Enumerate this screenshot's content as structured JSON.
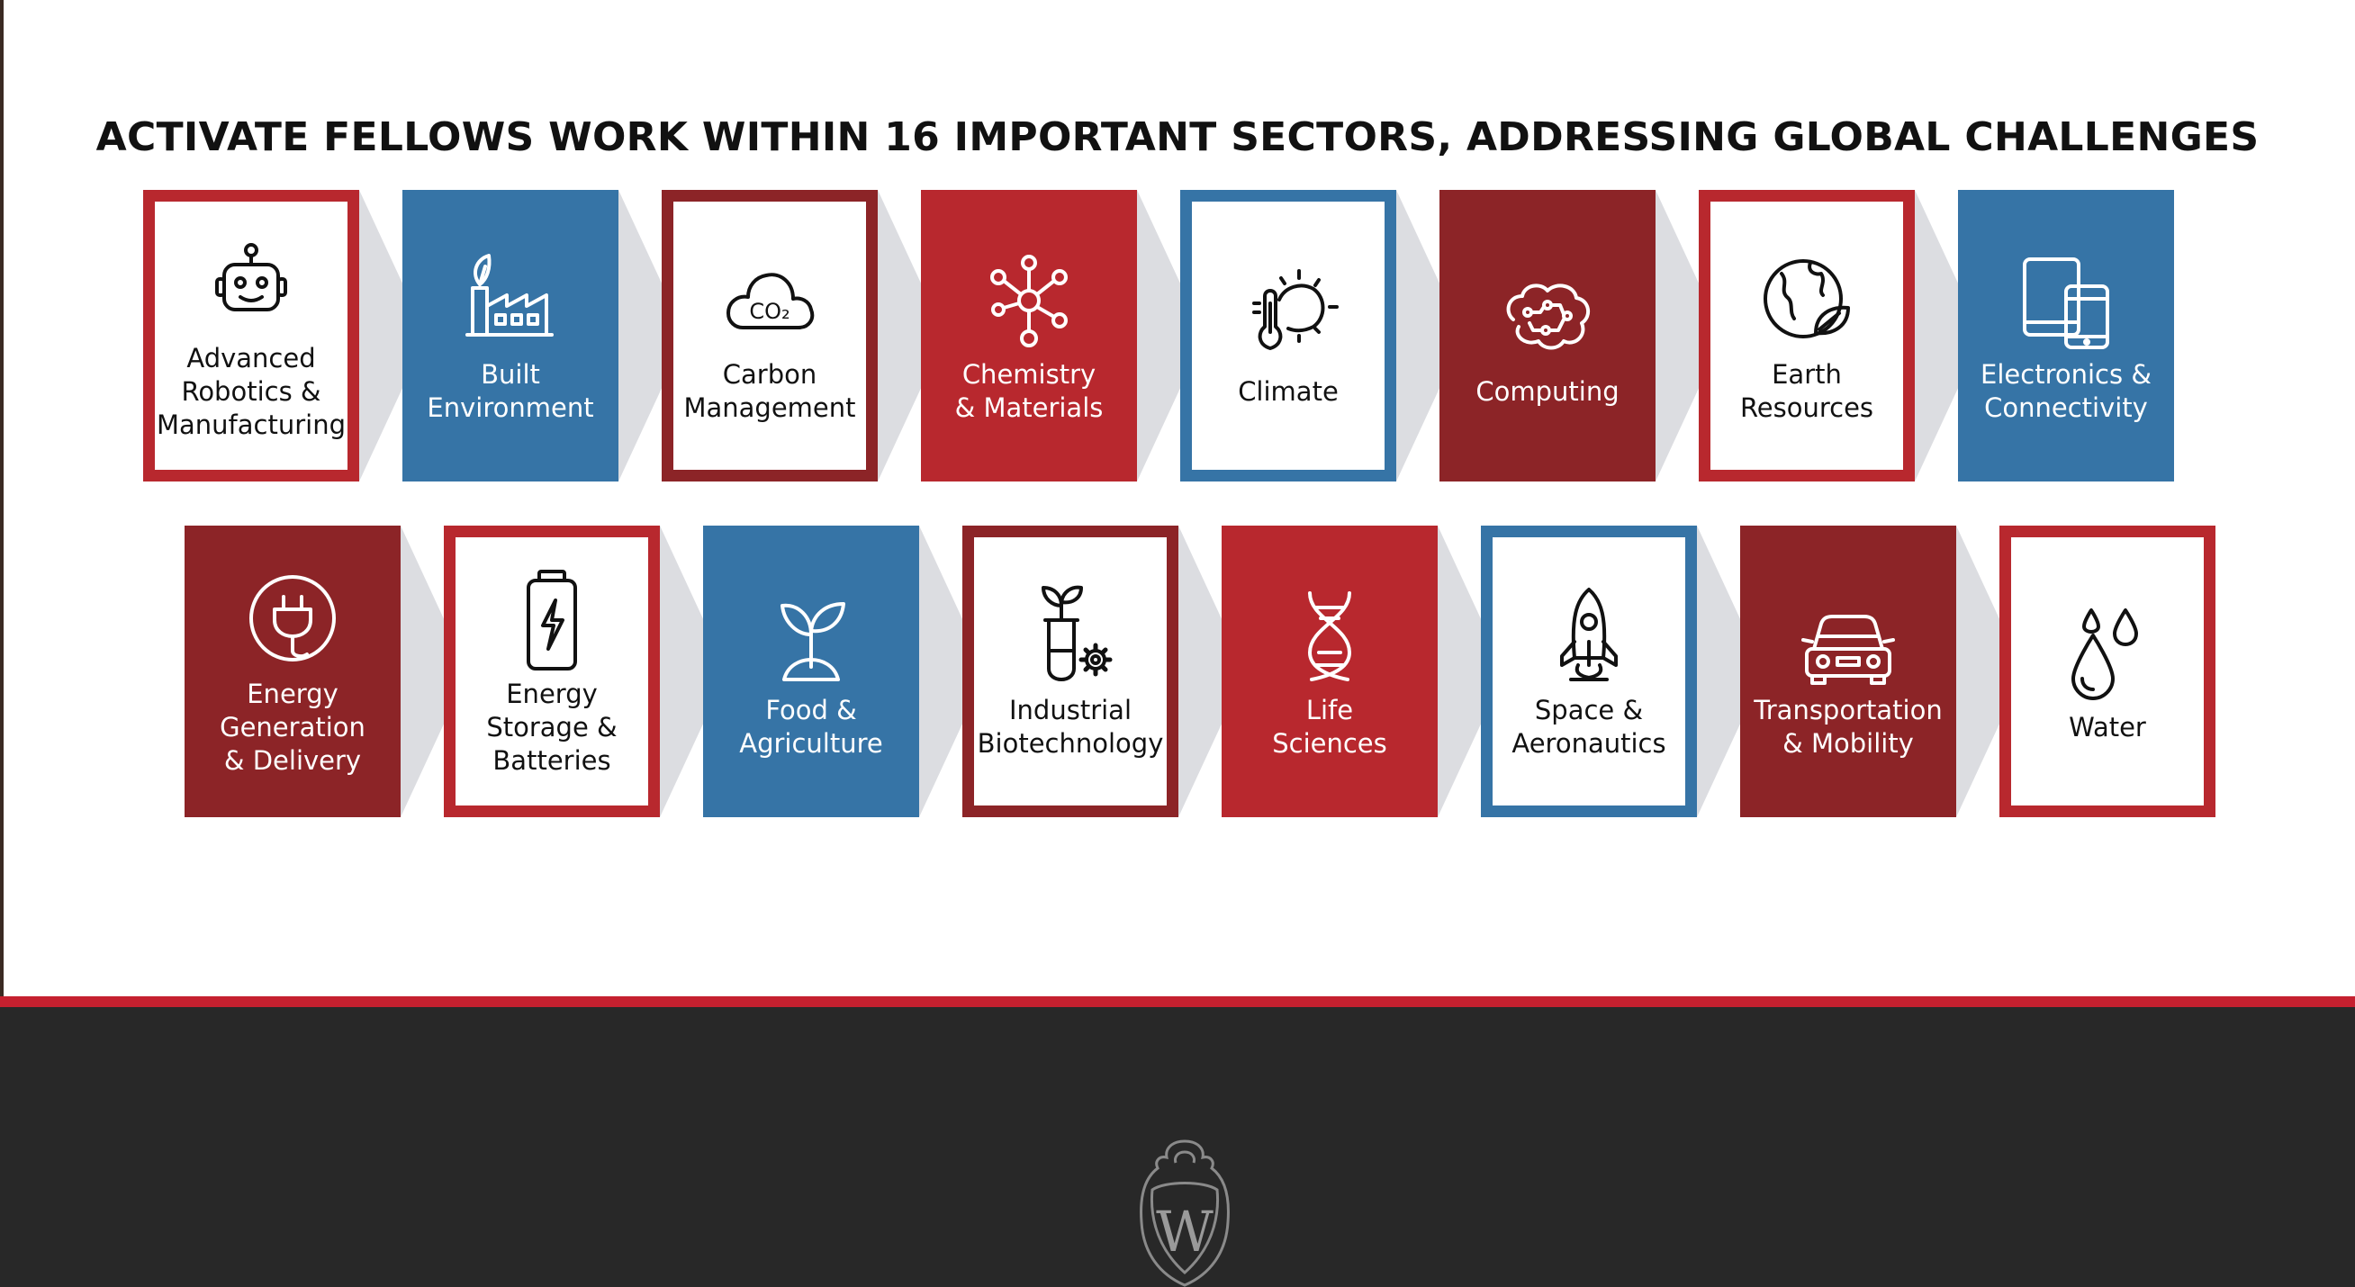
{
  "heading": "ACTIVATE FELLOWS WORK WITHIN 16 IMPORTANT SECTORS, ADDRESSING GLOBAL CHALLENGES",
  "colors": {
    "red": "#b8282e",
    "dark_red": "#8c2427",
    "blue": "#3674a6",
    "shadow": "#dcdde1",
    "footer_bg": "#282828",
    "footer_stripe": "#c5202f"
  },
  "rows": [
    {
      "tiles": [
        {
          "name": "advanced-robotics",
          "label": "Advanced\nRobotics &\nManufacturing",
          "style": "outline",
          "color": "red",
          "icon": "robot-icon"
        },
        {
          "name": "built-environment",
          "label": "Built\nEnvironment",
          "style": "solid",
          "color": "blue",
          "icon": "factory-icon"
        },
        {
          "name": "carbon-management",
          "label": "Carbon\nManagement",
          "style": "outline",
          "color": "dark_red",
          "icon": "co2-cloud-icon"
        },
        {
          "name": "chemistry-materials",
          "label": "Chemistry\n& Materials",
          "style": "solid",
          "color": "red",
          "icon": "molecule-icon"
        },
        {
          "name": "climate",
          "label": "Climate",
          "style": "outline",
          "color": "blue",
          "icon": "thermometer-sun-icon"
        },
        {
          "name": "computing",
          "label": "Computing",
          "style": "solid",
          "color": "dark_red",
          "icon": "circuit-brain-icon"
        },
        {
          "name": "earth-resources",
          "label": "Earth\nResources",
          "style": "outline",
          "color": "red",
          "icon": "globe-leaf-icon"
        },
        {
          "name": "electronics-connectivity",
          "label": "Electronics &\nConnectivity",
          "style": "solid",
          "color": "blue",
          "icon": "devices-icon"
        }
      ]
    },
    {
      "tiles": [
        {
          "name": "energy-generation",
          "label": "Energy\nGeneration\n& Delivery",
          "style": "solid",
          "color": "dark_red",
          "icon": "plug-icon"
        },
        {
          "name": "energy-storage",
          "label": "Energy\nStorage &\nBatteries",
          "style": "outline",
          "color": "red",
          "icon": "battery-icon"
        },
        {
          "name": "food-agriculture",
          "label": "Food &\nAgriculture",
          "style": "solid",
          "color": "blue",
          "icon": "sprout-icon"
        },
        {
          "name": "industrial-biotechnology",
          "label": "Industrial\nBiotechnology",
          "style": "outline",
          "color": "dark_red",
          "icon": "test-tube-gear-icon"
        },
        {
          "name": "life-sciences",
          "label": "Life\nSciences",
          "style": "solid",
          "color": "red",
          "icon": "dna-icon"
        },
        {
          "name": "space-aeronautics",
          "label": "Space &\nAeronautics",
          "style": "outline",
          "color": "blue",
          "icon": "rocket-icon"
        },
        {
          "name": "transportation-mobility",
          "label": "Transportation\n& Mobility",
          "style": "solid",
          "color": "dark_red",
          "icon": "car-icon"
        },
        {
          "name": "water",
          "label": "Water",
          "style": "outline",
          "color": "red",
          "icon": "water-drops-icon"
        }
      ]
    }
  ],
  "footer": {
    "crest_icon": "university-crest-icon"
  }
}
